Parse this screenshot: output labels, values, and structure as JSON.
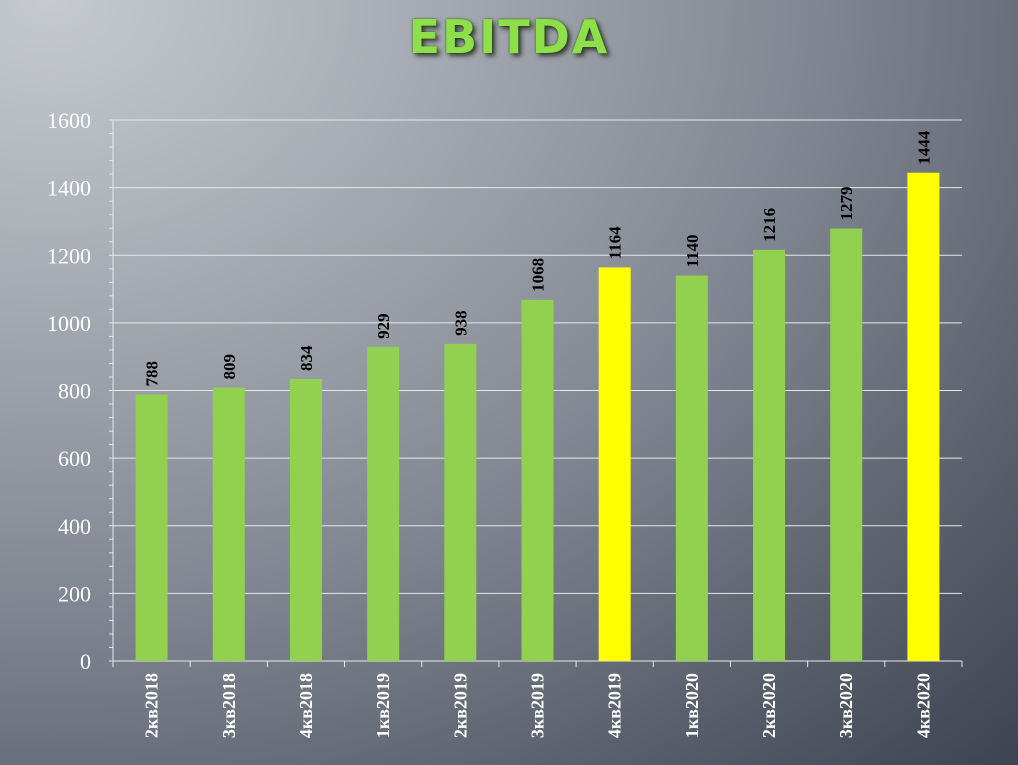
{
  "chart_data": {
    "type": "bar",
    "title": "EBITDA",
    "categories": [
      "2кв2018",
      "3кв2018",
      "4кв2018",
      "1кв2019",
      "2кв2019",
      "3кв2019",
      "4кв2019",
      "1кв2020",
      "2кв2020",
      "3кв2020",
      "4кв2020"
    ],
    "values": [
      788,
      809,
      834,
      929,
      938,
      1068,
      1164,
      1140,
      1216,
      1279,
      1444
    ],
    "highlighted": [
      "4кв2019",
      "4кв2020"
    ],
    "ylim": [
      0,
      1600
    ],
    "yticks": [
      0,
      200,
      400,
      600,
      800,
      1000,
      1200,
      1400,
      1600
    ],
    "grid": true,
    "data_labels": true,
    "colors": {
      "bar": "#92d050",
      "highlight": "#ffff00",
      "title": "#8ee04a",
      "text": "#ffffff",
      "data_label": "#000000"
    }
  }
}
